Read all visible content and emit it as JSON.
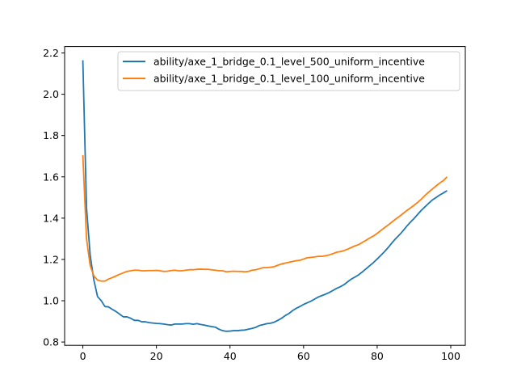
{
  "chart_data": {
    "type": "line",
    "title": "",
    "xlabel": "",
    "ylabel": "",
    "xlim": [
      -4.95,
      103.95
    ],
    "ylim": [
      0.784,
      2.231
    ],
    "xticks": [
      0,
      20,
      40,
      60,
      80,
      100
    ],
    "yticks": [
      0.8,
      1.0,
      1.2,
      1.4,
      1.6,
      1.8,
      2.0,
      2.2
    ],
    "xtick_labels": [
      "0",
      "20",
      "40",
      "60",
      "80",
      "100"
    ],
    "ytick_labels": [
      "0.8",
      "1.0",
      "1.2",
      "1.4",
      "1.6",
      "1.8",
      "2.0",
      "2.2"
    ],
    "grid": false,
    "legend_position": "upper right",
    "x": [
      0,
      1,
      2,
      3,
      4,
      5,
      6,
      7,
      8,
      9,
      10,
      11,
      12,
      13,
      14,
      15,
      16,
      17,
      18,
      19,
      20,
      21,
      22,
      23,
      24,
      25,
      26,
      27,
      28,
      29,
      30,
      31,
      32,
      33,
      34,
      35,
      36,
      37,
      38,
      39,
      40,
      41,
      42,
      43,
      44,
      45,
      46,
      47,
      48,
      49,
      50,
      51,
      52,
      53,
      54,
      55,
      56,
      57,
      58,
      59,
      60,
      61,
      62,
      63,
      64,
      65,
      66,
      67,
      68,
      69,
      70,
      71,
      72,
      73,
      74,
      75,
      76,
      77,
      78,
      79,
      80,
      81,
      82,
      83,
      84,
      85,
      86,
      87,
      88,
      89,
      90,
      91,
      92,
      93,
      94,
      95,
      96,
      97,
      98,
      99
    ],
    "series": [
      {
        "name": "ability/axe_1_bridge_0.1_level_500_uniform_incentive",
        "color": "#1f77b4",
        "values": [
          2.165,
          1.45,
          1.22,
          1.1,
          1.02,
          1.0,
          0.972,
          0.97,
          0.958,
          0.948,
          0.935,
          0.922,
          0.922,
          0.915,
          0.905,
          0.905,
          0.898,
          0.898,
          0.894,
          0.892,
          0.89,
          0.889,
          0.887,
          0.884,
          0.882,
          0.887,
          0.887,
          0.887,
          0.889,
          0.889,
          0.886,
          0.889,
          0.885,
          0.882,
          0.878,
          0.875,
          0.872,
          0.862,
          0.855,
          0.852,
          0.853,
          0.855,
          0.855,
          0.857,
          0.858,
          0.862,
          0.866,
          0.871,
          0.88,
          0.884,
          0.889,
          0.891,
          0.896,
          0.905,
          0.915,
          0.928,
          0.938,
          0.952,
          0.963,
          0.972,
          0.982,
          0.99,
          0.998,
          1.008,
          1.018,
          1.025,
          1.032,
          1.04,
          1.05,
          1.06,
          1.068,
          1.078,
          1.092,
          1.105,
          1.115,
          1.126,
          1.14,
          1.155,
          1.17,
          1.185,
          1.202,
          1.22,
          1.238,
          1.258,
          1.28,
          1.3,
          1.318,
          1.338,
          1.36,
          1.38,
          1.398,
          1.418,
          1.438,
          1.455,
          1.472,
          1.488,
          1.5,
          1.512,
          1.522,
          1.533
        ]
      },
      {
        "name": "ability/axe_1_bridge_0.1_level_100_uniform_incentive",
        "color": "#ff7f0e",
        "values": [
          1.705,
          1.3,
          1.17,
          1.12,
          1.1,
          1.095,
          1.095,
          1.105,
          1.112,
          1.12,
          1.128,
          1.135,
          1.142,
          1.145,
          1.148,
          1.148,
          1.145,
          1.145,
          1.146,
          1.146,
          1.147,
          1.145,
          1.142,
          1.143,
          1.146,
          1.148,
          1.145,
          1.145,
          1.148,
          1.15,
          1.15,
          1.152,
          1.153,
          1.152,
          1.152,
          1.15,
          1.148,
          1.145,
          1.145,
          1.14,
          1.142,
          1.143,
          1.142,
          1.142,
          1.14,
          1.142,
          1.148,
          1.15,
          1.155,
          1.16,
          1.16,
          1.162,
          1.165,
          1.172,
          1.178,
          1.182,
          1.186,
          1.19,
          1.194,
          1.196,
          1.202,
          1.208,
          1.21,
          1.212,
          1.215,
          1.215,
          1.218,
          1.222,
          1.228,
          1.235,
          1.238,
          1.243,
          1.25,
          1.258,
          1.266,
          1.272,
          1.283,
          1.293,
          1.304,
          1.314,
          1.326,
          1.34,
          1.354,
          1.367,
          1.381,
          1.395,
          1.408,
          1.422,
          1.436,
          1.449,
          1.462,
          1.476,
          1.492,
          1.51,
          1.526,
          1.541,
          1.556,
          1.57,
          1.582,
          1.6
        ]
      }
    ]
  }
}
